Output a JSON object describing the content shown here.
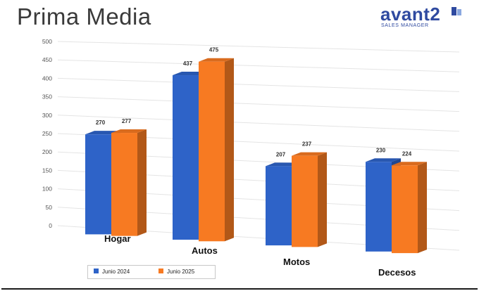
{
  "header": {
    "title": "Prima Media",
    "logo_text": "avant2",
    "logo_subtext": "SALES MANAGER"
  },
  "colors": {
    "series_1": "#2e63c8",
    "series_2": "#f77a22",
    "brand": "#2f4aa0"
  },
  "chart_data": {
    "type": "bar",
    "style": "3d-perspective",
    "title": "Prima Media",
    "categories": [
      "Hogar",
      "Autos",
      "Motos",
      "Decesos"
    ],
    "series": [
      {
        "name": "Junio 2024",
        "values": [
          270,
          437,
          207,
          230
        ]
      },
      {
        "name": "Junio 2025",
        "values": [
          277,
          475,
          237,
          224
        ]
      }
    ],
    "ylim": [
      0,
      500
    ],
    "yticks": [
      "0",
      "50",
      "100",
      "150",
      "200",
      "250",
      "300",
      "350",
      "400",
      "450",
      "500"
    ],
    "grid": true,
    "legend_position": "bottom-left",
    "data_labels": true
  }
}
